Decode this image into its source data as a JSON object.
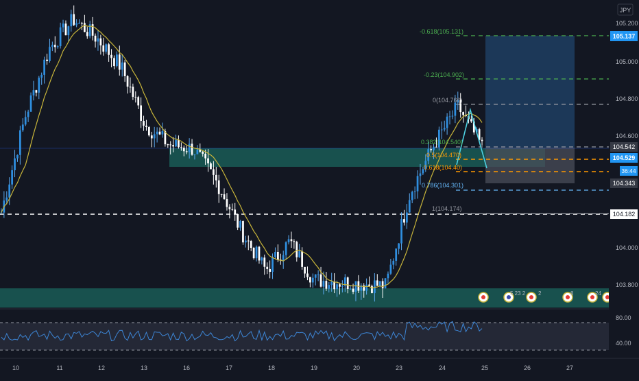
{
  "currency": "JPY",
  "price_axis": {
    "ticks": [
      "105.200",
      "105.000",
      "104.800",
      "104.600",
      "104.000",
      "103.800"
    ],
    "badges": [
      {
        "text": "105.137",
        "color": "#2196f3"
      },
      {
        "text": "104.542",
        "color": "#363a45"
      },
      {
        "text": "104.529",
        "color": "#2196f3"
      },
      {
        "text": "36:44",
        "color": "#2196f3"
      },
      {
        "text": "104.343",
        "color": "#363a45"
      },
      {
        "text": "104.182",
        "color": "#ffffff"
      }
    ]
  },
  "rsi_axis": {
    "ticks": [
      "80.00",
      "40.00"
    ]
  },
  "time_axis": {
    "labels": [
      "10",
      "11",
      "12",
      "13",
      "16",
      "17",
      "18",
      "19",
      "20",
      "23",
      "24",
      "25",
      "26",
      "27"
    ]
  },
  "fib_labels": [
    {
      "text": "-0.618(105.131)",
      "color": "#4caf50"
    },
    {
      "text": "-0.23(104.902)",
      "color": "#4caf50"
    },
    {
      "text": "0(104.766)",
      "color": "#9598a1"
    },
    {
      "text": "0.382(104.540)",
      "color": "#4caf50"
    },
    {
      "text": "0.5(104.470)",
      "color": "#ff9800"
    },
    {
      "text": "0.618(104.40)",
      "color": "#ff9800"
    },
    {
      "text": "0.786(104.301)",
      "color": "#64b5f6"
    },
    {
      "text": "1(104.174)",
      "color": "#9598a1"
    }
  ],
  "event_markers": [
    {
      "label": "",
      "icon": "flag-icon"
    },
    {
      "label": "5 23 2",
      "icon": "flag-icon"
    },
    {
      "label": "2",
      "icon": "flag-icon"
    },
    {
      "label": "8",
      "icon": "flag-icon"
    },
    {
      "label": "24",
      "icon": "flag-icon"
    },
    {
      "label": "",
      "icon": "flag-icon"
    }
  ],
  "colors": {
    "background": "#131722",
    "zone": "#1a5c56",
    "ma": "#c8b53a",
    "rsi": "#3d86d6",
    "candle": "#2f8fe0",
    "fib_green": "#4caf50",
    "fib_orange": "#ff9800"
  },
  "chart_data": {
    "type": "candlestick",
    "ylabel": "",
    "ylim": [
      103.7,
      105.3
    ],
    "x_categories": [
      "10",
      "11",
      "12",
      "13",
      "16",
      "17",
      "18",
      "19",
      "20",
      "23",
      "24",
      "25",
      "26",
      "27"
    ],
    "close_path": [
      [
        104.2,
        104.1
      ],
      [
        104.7,
        104.85
      ],
      [
        105.05,
        105.15
      ],
      [
        105.2,
        105.25
      ],
      [
        105.1,
        105.05
      ],
      [
        104.95,
        104.8
      ],
      [
        104.65,
        104.6
      ],
      [
        104.55,
        104.5
      ],
      [
        104.53,
        104.48
      ],
      [
        104.35,
        104.2
      ],
      [
        104.1,
        103.95
      ],
      [
        103.9,
        103.95
      ],
      [
        104.05,
        103.9
      ],
      [
        103.85,
        103.82
      ],
      [
        103.84,
        103.8
      ],
      [
        103.83,
        103.85
      ],
      [
        103.82,
        103.78
      ],
      [
        104.3,
        104.5
      ],
      [
        104.55,
        104.5
      ],
      [
        104.75,
        104.6
      ],
      [
        104.54,
        104.53
      ]
    ],
    "rsi": {
      "range": [
        0,
        100
      ],
      "levels": [
        70,
        30
      ],
      "tick_labels": [
        "80.00",
        "40.00"
      ]
    }
  }
}
